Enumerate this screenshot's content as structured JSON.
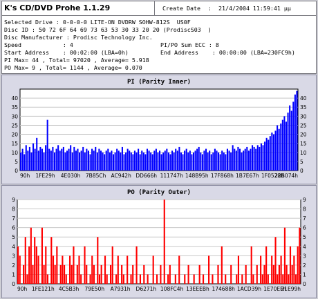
{
  "app": {
    "title": "K's CD/DVD Prohe 1.1.29",
    "create_date_label": "Create Date",
    "create_date_value": ":  21/4/2004 11:59:41 μμ"
  },
  "info": {
    "line1": "Selected Drive : 0-0-0-0 LITE-ON DVDRW SOHW-812S  US0F",
    "line2": "Disc ID : 50 72 6F 64 69 73 63 53 30 33 20 20 (ProdiscS03  )",
    "line3": "Disc Manufacturer : Prodisc Technology Inc.",
    "line4_left": "Speed            : 4",
    "line4_right": "PI/PO Sum ECC : 8",
    "line5_left": "Start Address    : 00:02:00 (LBA=0h)",
    "line5_right": "End Address    : 00:00:00 (LBA=230FC9h)",
    "line6": "PI Max= 44 , Total= 97020 , Average= 5.918",
    "line7": "PO Max= 9 , Total= 1144 , Average= 0.070"
  },
  "colors": {
    "pi": "#0000ff",
    "po": "#ff0000",
    "background": "#ffffff",
    "grid": "#c8c8c8"
  },
  "chart_data": [
    {
      "type": "bar",
      "title": "PI (Parity Inner)",
      "x_ticks": [
        "90h",
        "1FE29h",
        "4E030h",
        "7B85Ch",
        "AC942h",
        "DD666h",
        "111747h",
        "148B95h",
        "17F868h",
        "1B7E67h",
        "1F0528h",
        "22B074h"
      ],
      "ylim": [
        0,
        45
      ],
      "y_ticks": [
        0,
        5,
        10,
        15,
        20,
        25,
        30,
        35,
        40
      ],
      "grid": true,
      "max": 44,
      "average": 5.918,
      "series": [
        {
          "values": [
            10,
            12,
            9,
            14,
            11,
            13,
            10,
            15,
            12,
            18,
            11,
            13,
            12,
            10,
            14,
            28,
            12,
            11,
            13,
            10,
            12,
            14,
            11,
            12,
            13,
            10,
            11,
            12,
            14,
            10,
            13,
            11,
            12,
            10,
            11,
            13,
            10,
            12,
            11,
            9,
            12,
            11,
            13,
            10,
            12,
            11,
            10,
            9,
            11,
            12,
            10,
            11,
            9,
            10,
            12,
            11,
            10,
            13,
            9,
            10,
            12,
            11,
            10,
            9,
            11,
            10,
            12,
            9,
            11,
            10,
            9,
            12,
            11,
            10,
            9,
            11,
            12,
            10,
            11,
            9,
            10,
            11,
            12,
            10,
            9,
            11,
            10,
            12,
            11,
            13,
            10,
            9,
            11,
            12,
            10,
            11,
            9,
            10,
            11,
            12,
            13,
            10,
            9,
            11,
            12,
            10,
            11,
            9,
            10,
            12,
            11,
            10,
            9,
            11,
            10,
            9,
            12,
            11,
            10,
            14,
            12,
            11,
            13,
            12,
            10,
            11,
            12,
            13,
            11,
            12,
            14,
            13,
            12,
            14,
            13,
            15,
            14,
            16,
            18,
            17,
            19,
            21,
            20,
            22,
            25,
            23,
            26,
            28,
            30,
            27,
            32,
            36,
            33,
            38,
            42,
            44
          ]
        }
      ]
    },
    {
      "type": "bar",
      "title": "PO (Parity Outer)",
      "x_ticks": [
        "90h",
        "1FE121h",
        "4C5B3h",
        "79E50h",
        "A7931h",
        "D6271h",
        "108FC4h",
        "13EEEBh",
        "174688h",
        "1ACD39h",
        "1E70EFh",
        "21E99h"
      ],
      "ylim": [
        0,
        9
      ],
      "y_ticks": [
        0,
        1,
        2,
        3,
        4,
        5,
        6,
        7,
        8,
        9
      ],
      "grid": true,
      "max": 9,
      "average": 0.07,
      "series": [
        {
          "values": [
            4,
            3,
            0,
            2,
            5,
            1,
            4,
            6,
            2,
            5,
            4,
            3,
            0,
            6,
            2,
            4,
            1,
            0,
            5,
            3,
            2,
            4,
            0,
            2,
            3,
            2,
            1,
            0,
            3,
            2,
            4,
            0,
            2,
            3,
            1,
            0,
            4,
            2,
            0,
            1,
            3,
            2,
            0,
            5,
            1,
            2,
            0,
            3,
            1,
            0,
            2,
            4,
            0,
            1,
            3,
            0,
            2,
            1,
            0,
            3,
            0,
            1,
            2,
            0,
            4,
            0,
            1,
            0,
            2,
            0,
            1,
            0,
            0,
            3,
            0,
            1,
            0,
            2,
            0,
            9,
            0,
            1,
            2,
            0,
            0,
            1,
            0,
            3,
            0,
            0,
            1,
            0,
            2,
            0,
            0,
            1,
            0,
            0,
            2,
            0,
            1,
            0,
            0,
            3,
            0,
            1,
            0,
            0,
            2,
            0,
            4,
            0,
            1,
            0,
            0,
            2,
            0,
            0,
            1,
            3,
            0,
            1,
            0,
            2,
            0,
            0,
            4,
            1,
            0,
            2,
            0,
            3,
            1,
            2,
            4,
            1,
            0,
            3,
            2,
            5,
            1,
            2,
            3,
            1,
            6,
            2,
            1,
            4,
            2,
            3,
            1,
            4,
            6
          ]
        }
      ]
    }
  ]
}
